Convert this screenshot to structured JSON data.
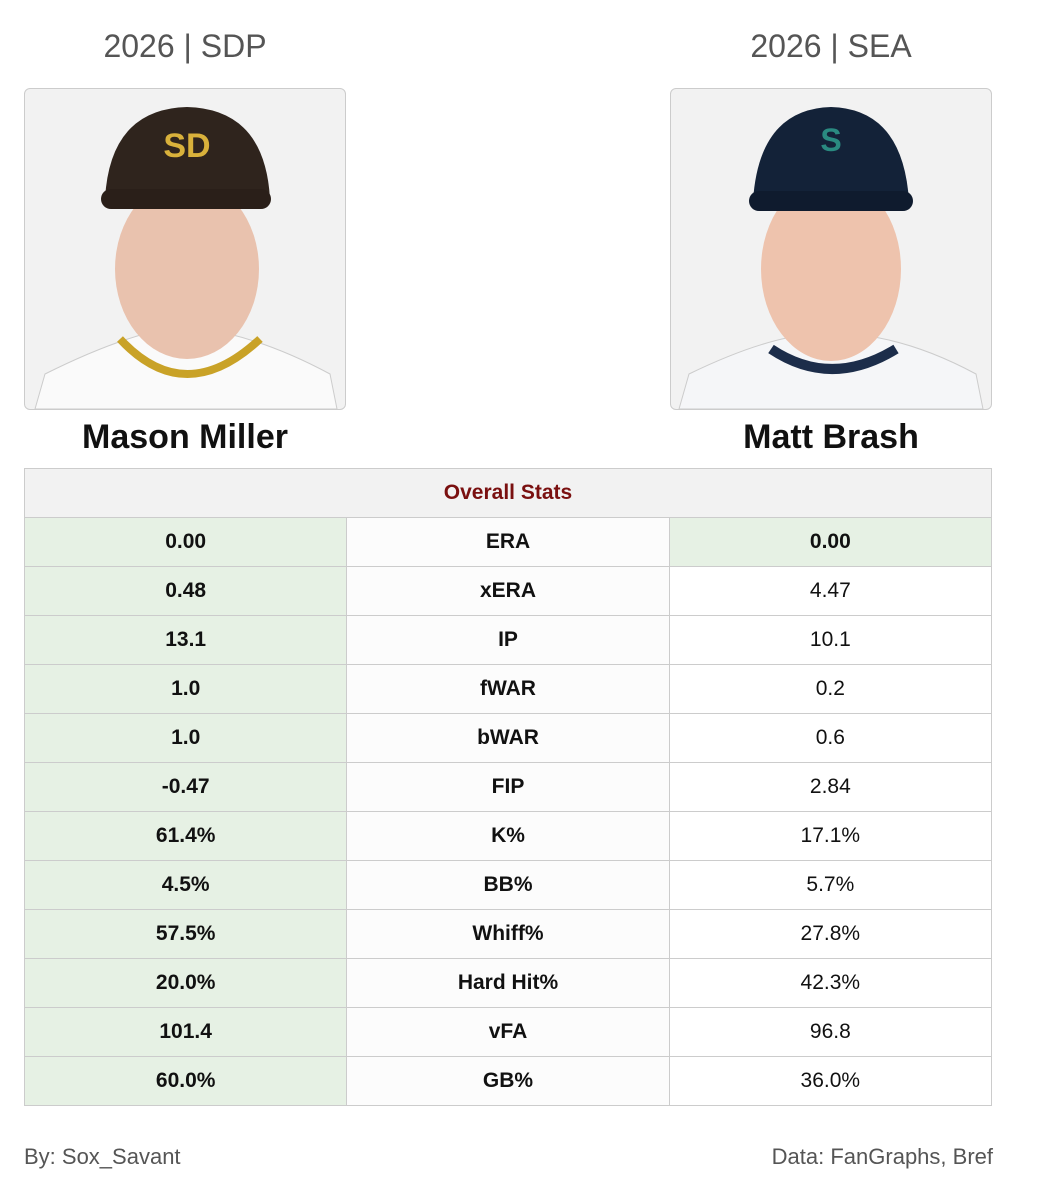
{
  "players": [
    {
      "header": "2026 | SDP",
      "name": "Mason Miller"
    },
    {
      "header": "2026 | SEA",
      "name": "Matt Brash"
    }
  ],
  "table": {
    "title": "Overall Stats",
    "highlight_color": "#e6f1e4",
    "rows": [
      [
        "0.00",
        "ERA",
        "0.00"
      ],
      [
        "0.48",
        "xERA",
        "4.47"
      ],
      [
        "13.1",
        "IP",
        "10.1"
      ],
      [
        "1.0",
        "fWAR",
        "0.2"
      ],
      [
        "1.0",
        "bWAR",
        "0.6"
      ],
      [
        "-0.47",
        "FIP",
        "2.84"
      ],
      [
        "61.4%",
        "K%",
        "17.1%"
      ],
      [
        "4.5%",
        "BB%",
        "5.7%"
      ],
      [
        "57.5%",
        "Whiff%",
        "27.8%"
      ],
      [
        "20.0%",
        "Hard Hit%",
        "42.3%"
      ],
      [
        "101.4",
        "vFA",
        "96.8"
      ],
      [
        "60.0%",
        "GB%",
        "36.0%"
      ]
    ],
    "highlighted": [
      [
        true,
        true
      ],
      [
        true,
        false
      ],
      [
        true,
        false
      ],
      [
        true,
        false
      ],
      [
        true,
        false
      ],
      [
        true,
        false
      ],
      [
        true,
        false
      ],
      [
        true,
        false
      ],
      [
        true,
        false
      ],
      [
        true,
        false
      ],
      [
        true,
        false
      ],
      [
        true,
        false
      ]
    ]
  },
  "footer": {
    "credit": "By: Sox_Savant",
    "source": "Data: FanGraphs, Bref"
  }
}
